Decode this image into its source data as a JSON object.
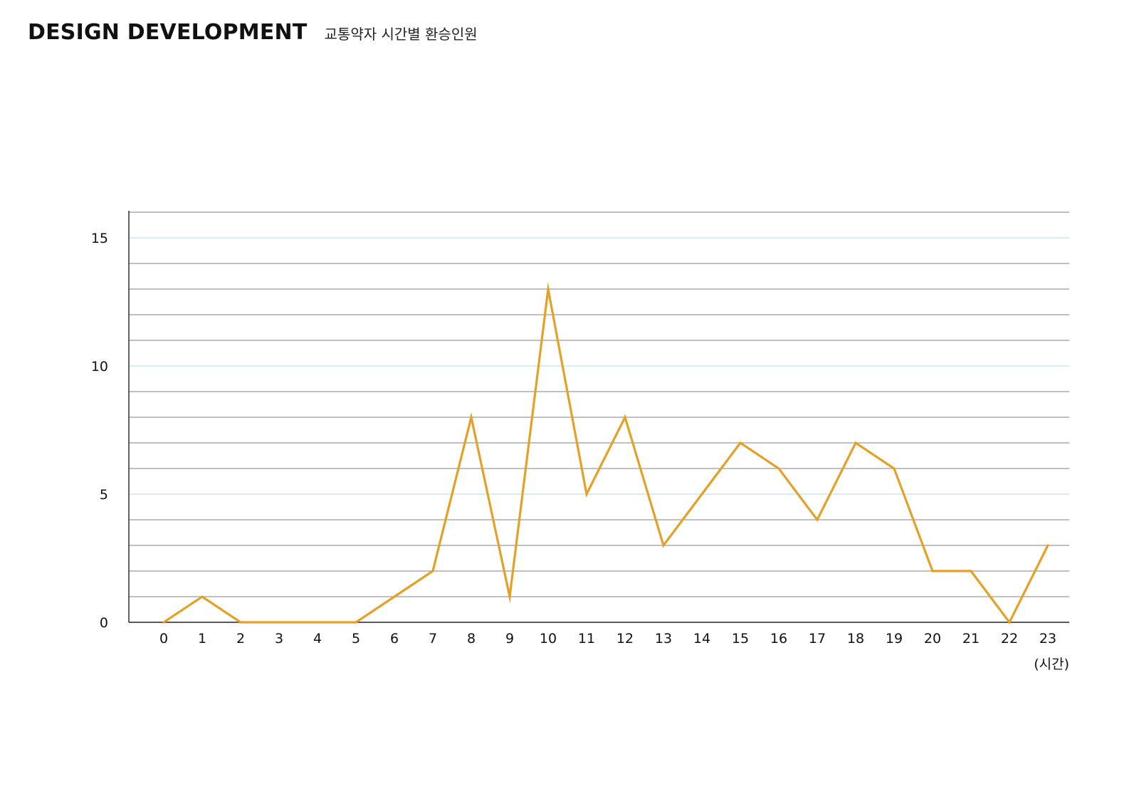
{
  "header": {
    "title": "DESIGN DEVELOPMENT",
    "subtitle": "교통약자 시간별 환승인원"
  },
  "chart_data": {
    "type": "line",
    "title": "",
    "xlabel": "(시간)",
    "ylabel": "",
    "categories": [
      0,
      1,
      2,
      3,
      4,
      5,
      6,
      7,
      8,
      9,
      10,
      11,
      12,
      13,
      14,
      15,
      16,
      17,
      18,
      19,
      20,
      21,
      22,
      23
    ],
    "series": [
      {
        "values": [
          0,
          1,
          0,
          0,
          0,
          0,
          1,
          2,
          8,
          1,
          13,
          5,
          8,
          3,
          5,
          7,
          6,
          4,
          7,
          6,
          2,
          2,
          0,
          3
        ]
      }
    ],
    "ylim": [
      0,
      16
    ],
    "yticks": [
      0,
      5,
      10,
      15
    ],
    "grid_step": 1,
    "grid": true,
    "colors": {
      "line": "#E5A126",
      "grid_major": "#BFE0EE",
      "grid_minor": "#9A9A9A",
      "axis": "#222222"
    }
  }
}
